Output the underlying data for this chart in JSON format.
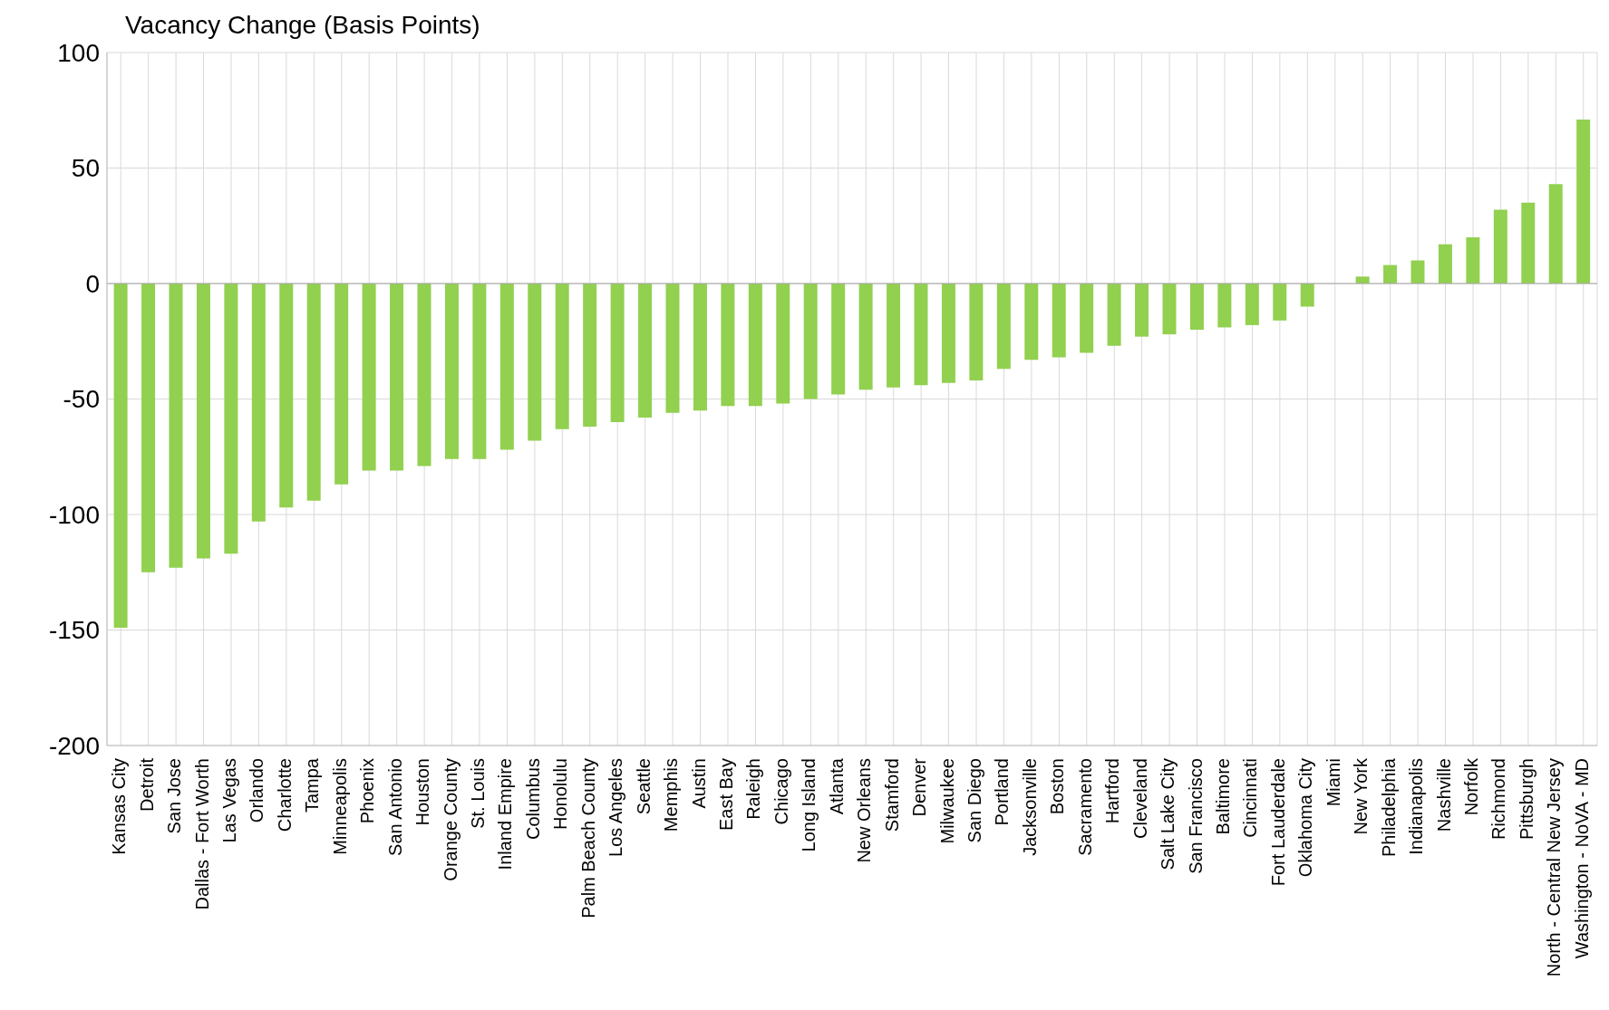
{
  "chart_data": {
    "type": "bar",
    "title": "Vacancy Change (Basis Points)",
    "categories": [
      "Kansas City",
      "Detroit",
      "San Jose",
      "Dallas - Fort Worth",
      "Las Vegas",
      "Orlando",
      "Charlotte",
      "Tampa",
      "Minneapolis",
      "Phoenix",
      "San Antonio",
      "Houston",
      "Orange County",
      "St. Louis",
      "Inland Empire",
      "Columbus",
      "Honolulu",
      "Palm Beach County",
      "Los Angeles",
      "Seattle",
      "Memphis",
      "Austin",
      "East Bay",
      "Raleigh",
      "Chicago",
      "Long Island",
      "Atlanta",
      "New Orleans",
      "Stamford",
      "Denver",
      "Milwaukee",
      "San Diego",
      "Portland",
      "Jacksonville",
      "Boston",
      "Sacramento",
      "Hartford",
      "Cleveland",
      "Salt Lake City",
      "San Francisco",
      "Baltimore",
      "Cincinnati",
      "Fort Lauderdale",
      "Oklahoma City",
      "Miami",
      "New York",
      "Philadelphia",
      "Indianapolis",
      "Nashville",
      "Norfolk",
      "Richmond",
      "Pittsburgh",
      "North - Central New Jersey",
      "Washington - NoVA - MD"
    ],
    "values": [
      -149,
      -125,
      -123,
      -119,
      -117,
      -103,
      -97,
      -94,
      -87,
      -81,
      -81,
      -79,
      -76,
      -76,
      -72,
      -68,
      -63,
      -62,
      -60,
      -58,
      -56,
      -55,
      -53,
      -53,
      -52,
      -50,
      -48,
      -46,
      -45,
      -44,
      -43,
      -42,
      -37,
      -33,
      -32,
      -30,
      -27,
      -23,
      -22,
      -20,
      -19,
      -18,
      -16,
      -10,
      0,
      3,
      8,
      10,
      17,
      20,
      32,
      35,
      43,
      71
    ],
    "color": "#92d050",
    "ylim": [
      -200,
      100
    ],
    "yticks": [
      -200,
      -150,
      -100,
      -50,
      0,
      50,
      100
    ],
    "grid": true
  }
}
